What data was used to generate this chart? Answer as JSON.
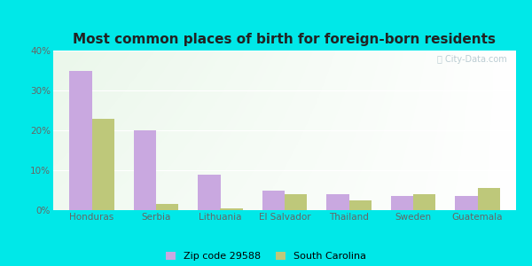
{
  "title": "Most common places of birth for foreign-born residents",
  "categories": [
    "Honduras",
    "Serbia",
    "Lithuania",
    "El Salvador",
    "Thailand",
    "Sweden",
    "Guatemala"
  ],
  "zip_values": [
    35,
    20,
    9,
    5,
    4,
    3.5,
    3.5
  ],
  "sc_values": [
    23,
    1.5,
    0.5,
    4,
    2.5,
    4,
    5.5
  ],
  "zip_color": "#c9a8e0",
  "sc_color": "#bec87a",
  "zip_label": "Zip code 29588",
  "sc_label": "South Carolina",
  "ylim": [
    0,
    40
  ],
  "yticks": [
    0,
    10,
    20,
    30,
    40
  ],
  "ytick_labels": [
    "0%",
    "10%",
    "20%",
    "30%",
    "40%"
  ],
  "bg_outer": "#00e8e8",
  "watermark": "ⓘ City-Data.com",
  "title_fontsize": 11,
  "tick_fontsize": 7.5,
  "legend_fontsize": 8
}
